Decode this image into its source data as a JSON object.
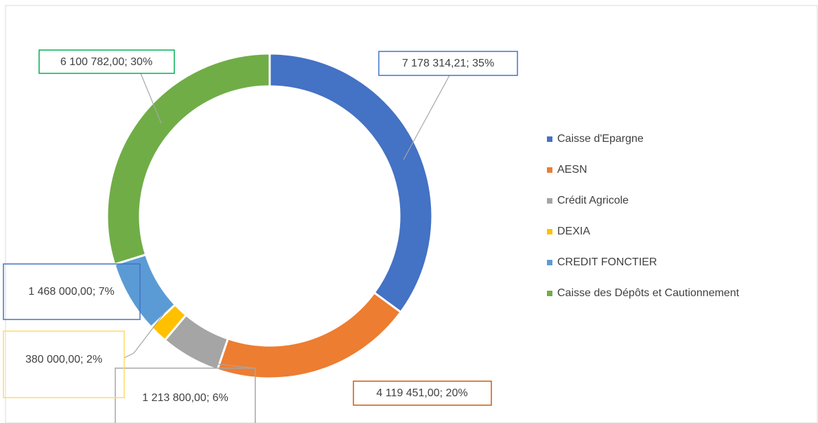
{
  "chart_data": {
    "type": "doughnut",
    "categories": [
      "Caisse d'Epargne",
      "AESN",
      "Crédit Agricole",
      "DEXIA",
      "CREDIT FONCTIER",
      "Caisse des Dépôts et Cautionnement"
    ],
    "values": [
      7178314.21,
      4119451.0,
      1213800.0,
      380000.0,
      1468000.0,
      6100782.0
    ],
    "value_labels": [
      "7 178 314,21; 35%",
      "4 119 451,00; 20%",
      "1 213 800,00; 6%",
      "380 000,00; 2%",
      "1 468 000,00; 7%",
      "6 100 782,00; 30%"
    ],
    "colors": [
      "#4472c4",
      "#ed7d31",
      "#a5a5a5",
      "#ffc000",
      "#5b9bd5",
      "#70ad47"
    ],
    "label_border_colors": [
      "#4472c4",
      "#c55a11",
      "#a5a5a5",
      "#ffd966",
      "#4472c4",
      "#00b050"
    ],
    "legend": "right"
  }
}
